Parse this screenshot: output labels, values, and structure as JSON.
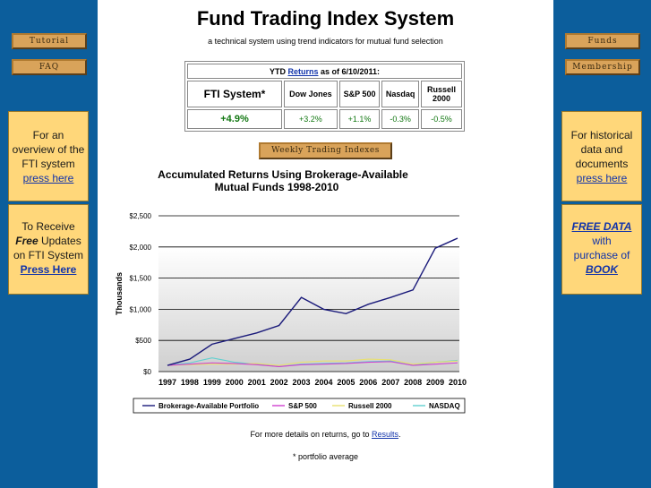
{
  "left_nav": {
    "tutorial_label": "Tutorial",
    "faq_label": "FAQ",
    "overview_box": {
      "text": "For an overview of the FTI system",
      "link": "press here"
    },
    "updates_box": {
      "prefix": "To Receive",
      "free": "Free",
      "suffix": "Updates on FTI System",
      "link": "Press Here"
    }
  },
  "right_nav": {
    "funds_label": "Funds",
    "membership_label": "Membership",
    "historical_box": {
      "text": "For historical data and documents",
      "link": "press here"
    },
    "free_data_box": {
      "title": "FREE DATA",
      "line1": "with",
      "line2": "purchase of",
      "book": "BOOK"
    }
  },
  "header": {
    "title": "Fund Trading Index System",
    "subtitle": "a technical system using trend indicators for mutual fund selection"
  },
  "ytd_table": {
    "prefix": "YTD",
    "returns_link": "Returns",
    "suffix": "as of 6/10/2011:",
    "columns": [
      "FTI System*",
      "Dow Jones",
      "S&P 500",
      "Nasdaq",
      "Russell 2000"
    ],
    "values": [
      "+4.9%",
      "+3.2%",
      "+1.1%",
      "-0.3%",
      "-0.5%"
    ]
  },
  "weekly_button_label": "Weekly Trading Indexes",
  "chart_data": {
    "type": "line",
    "title": "Accumulated Returns Using Brokerage-Available Mutual Funds 1998-2010",
    "ylabel": "Thousands",
    "xlabel": "",
    "x": [
      1997,
      1998,
      1999,
      2000,
      2001,
      2002,
      2003,
      2004,
      2005,
      2006,
      2007,
      2008,
      2009,
      2010
    ],
    "ytick_labels": [
      "$0",
      "$500",
      "$1,000",
      "$1,500",
      "$2,000",
      "$2,500"
    ],
    "ylim": [
      0,
      2500
    ],
    "grid": true,
    "legend": "bottom",
    "series": [
      {
        "name": "Brokerage-Available Portfolio",
        "color": "#1a1a7a",
        "values": [
          100,
          200,
          440,
          530,
          620,
          740,
          1190,
          1000,
          930,
          1080,
          1190,
          1310,
          1980,
          2140
        ]
      },
      {
        "name": "S&P 500",
        "color": "#d040d0",
        "values": [
          100,
          120,
          140,
          130,
          110,
          80,
          110,
          120,
          130,
          150,
          160,
          100,
          120,
          140
        ]
      },
      {
        "name": "Russell 2000",
        "color": "#e8e070",
        "values": [
          100,
          110,
          120,
          120,
          130,
          100,
          150,
          170,
          170,
          200,
          190,
          120,
          150,
          170
        ]
      },
      {
        "name": "NASDAQ",
        "color": "#60d0d0",
        "values": [
          100,
          140,
          220,
          150,
          120,
          80,
          120,
          130,
          140,
          160,
          170,
          100,
          150,
          180
        ]
      }
    ]
  },
  "footer": {
    "details_prefix": "For more details on returns, go to",
    "details_link": "Results",
    "details_suffix": ".",
    "note": "* portfolio average"
  }
}
